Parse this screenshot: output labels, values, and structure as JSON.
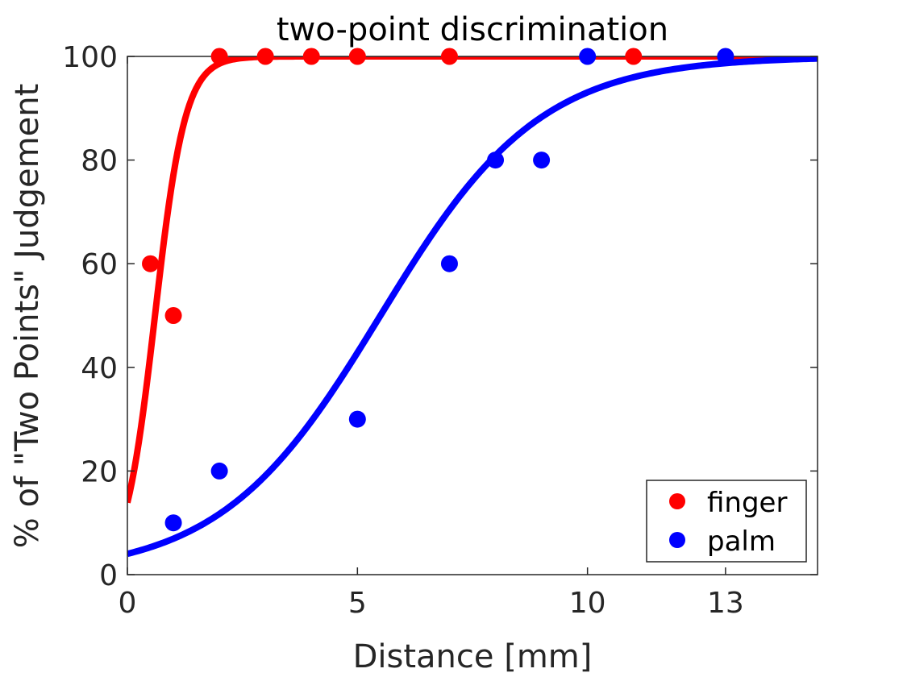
{
  "chart_data": {
    "type": "scatter",
    "title": "two-point discrimination",
    "xlabel": "Distance [mm]",
    "ylabel": "% of \"Two Points\" Judgement",
    "xlim": [
      0,
      15
    ],
    "ylim": [
      0,
      100
    ],
    "xticks": [
      0,
      5,
      10,
      13
    ],
    "yticks": [
      0,
      20,
      40,
      60,
      80,
      100
    ],
    "grid": false,
    "legend_position": "bottom-right",
    "series": [
      {
        "name": "finger",
        "color": "#ff0000",
        "points": [
          {
            "x": 0.5,
            "y": 60
          },
          {
            "x": 1,
            "y": 50
          },
          {
            "x": 2,
            "y": 100
          },
          {
            "x": 3,
            "y": 100
          },
          {
            "x": 4,
            "y": 100
          },
          {
            "x": 5,
            "y": 100
          },
          {
            "x": 7,
            "y": 100
          },
          {
            "x": 11,
            "y": 100
          }
        ],
        "fit": {
          "model": "logistic",
          "midpoint": 0.6,
          "slope": 3.04
        }
      },
      {
        "name": "palm",
        "color": "#0000ff",
        "points": [
          {
            "x": 1,
            "y": 10
          },
          {
            "x": 2,
            "y": 20
          },
          {
            "x": 5,
            "y": 30
          },
          {
            "x": 7,
            "y": 60
          },
          {
            "x": 8,
            "y": 80
          },
          {
            "x": 9,
            "y": 80
          },
          {
            "x": 10,
            "y": 100
          },
          {
            "x": 13,
            "y": 100
          }
        ],
        "fit": {
          "model": "logistic",
          "midpoint": 5.5,
          "slope": 0.577
        }
      }
    ]
  }
}
